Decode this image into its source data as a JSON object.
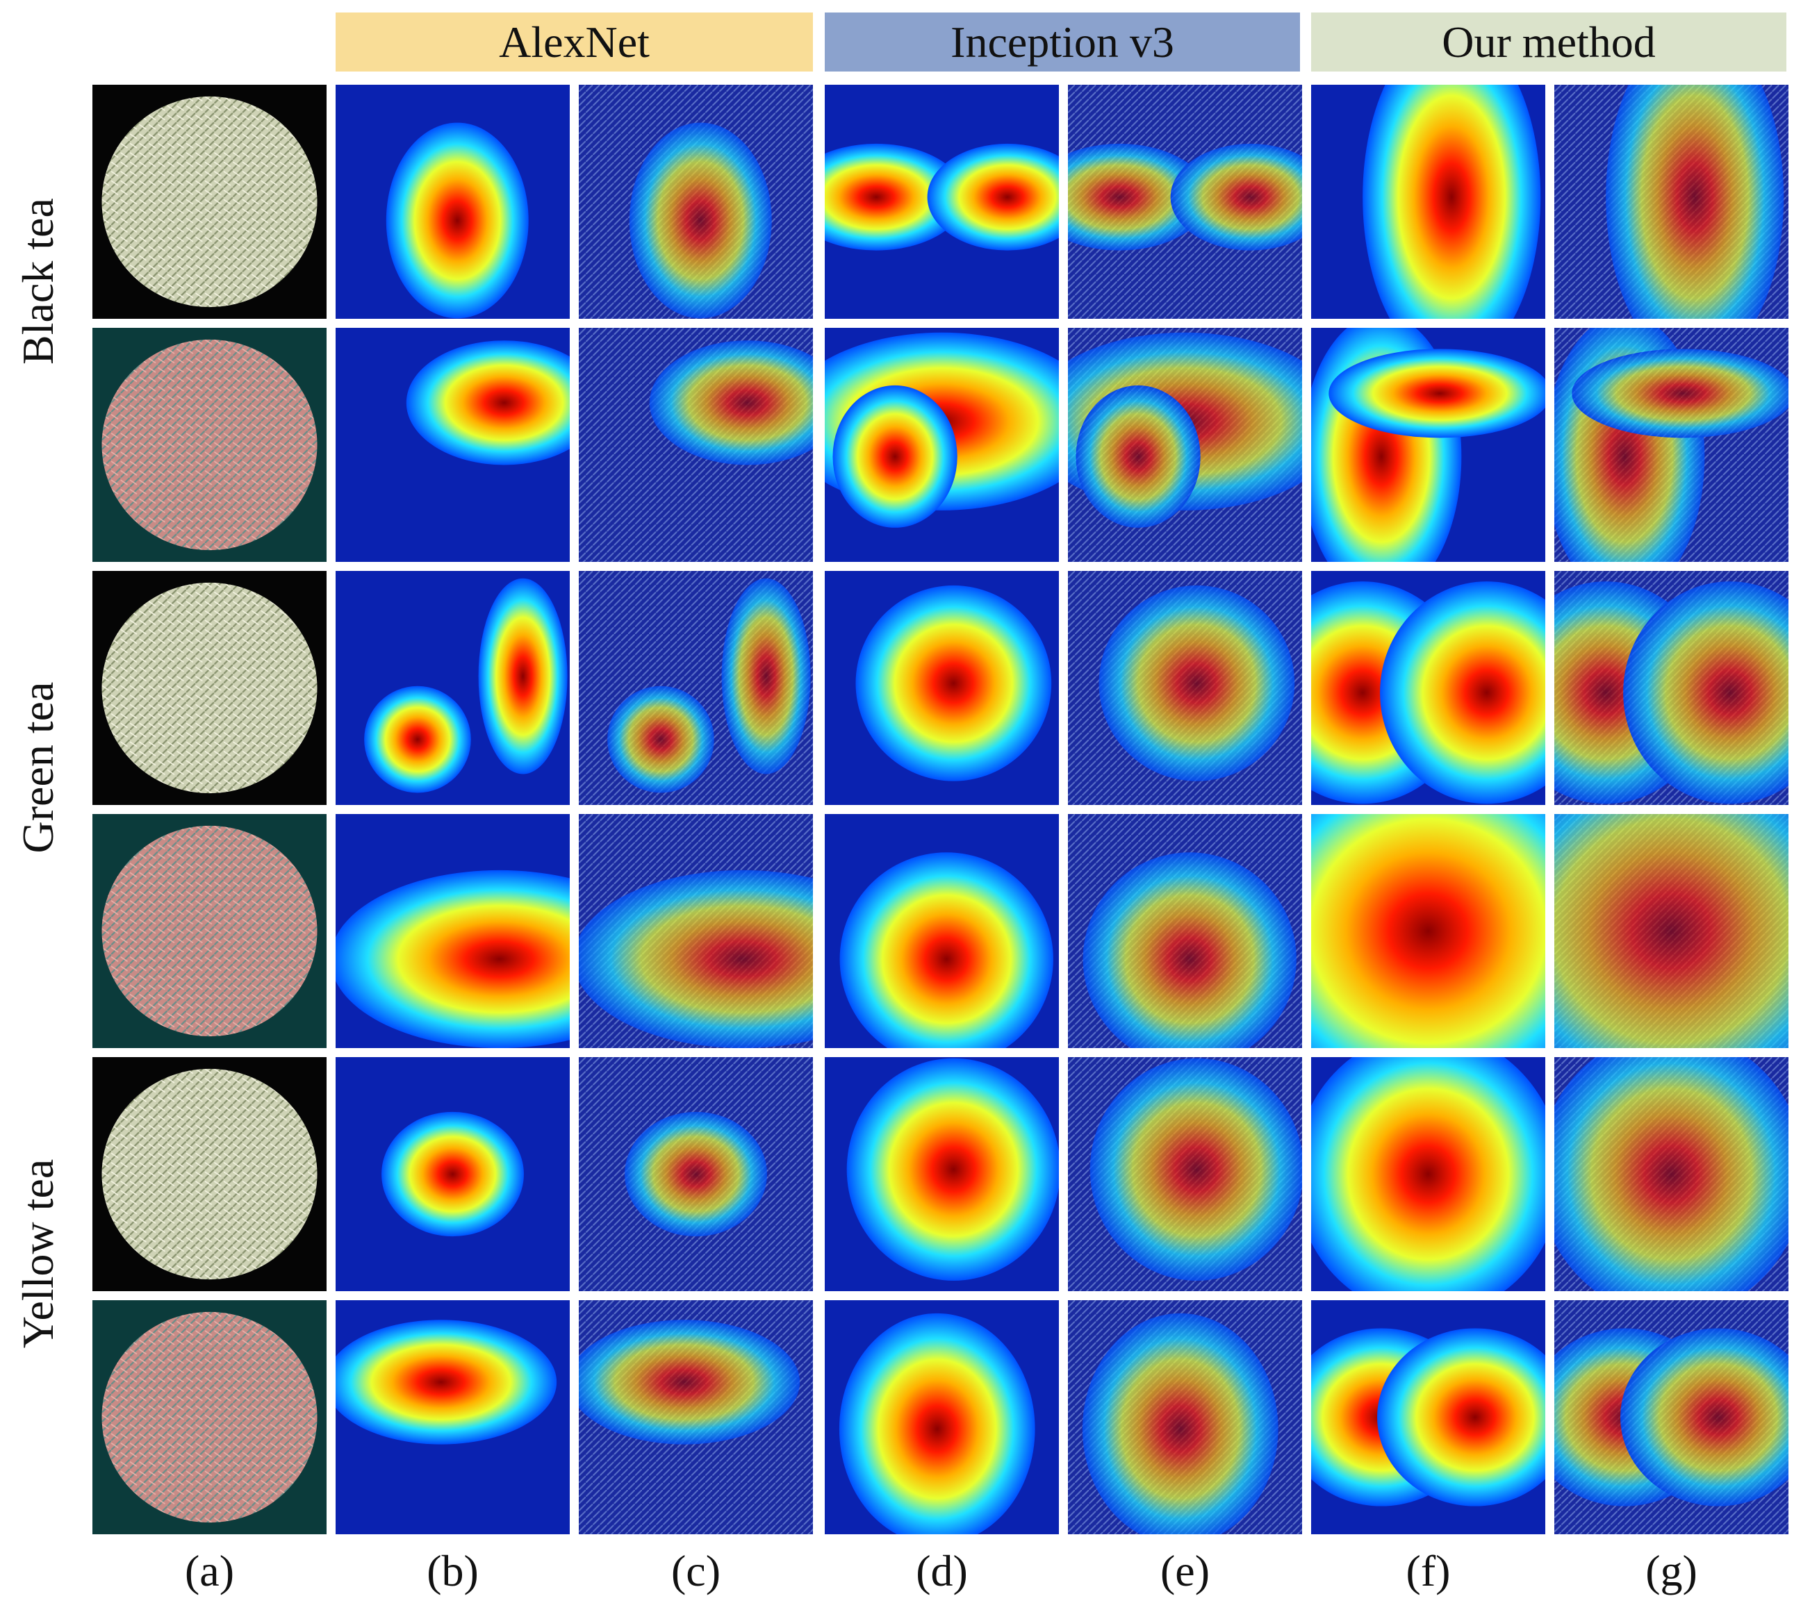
{
  "method_headers": {
    "alexnet": "AlexNet",
    "inception": "Inception v3",
    "ours": "Our method"
  },
  "row_groups": {
    "black_tea": "Black tea",
    "green_tea": "Green tea",
    "yellow_tea": "Yellow tea"
  },
  "columns": {
    "a": "(a)",
    "b": "(b)",
    "c": "(c)",
    "d": "(d)",
    "e": "(e)",
    "f": "(f)",
    "g": "(g)"
  },
  "colors": {
    "alexnet_header": "#f9dd97",
    "inception_header": "#8ba2cd",
    "ours_header": "#dbe3cb",
    "jet_low": "#00008f",
    "jet_high": "#7f0000"
  }
}
